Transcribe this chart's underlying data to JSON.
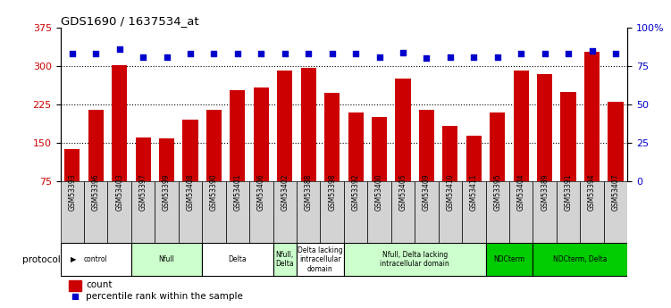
{
  "title": "GDS1690 / 1637534_at",
  "samples": [
    "GSM53393",
    "GSM53396",
    "GSM53403",
    "GSM53397",
    "GSM53399",
    "GSM53408",
    "GSM53390",
    "GSM53401",
    "GSM53406",
    "GSM53402",
    "GSM53388",
    "GSM53398",
    "GSM53392",
    "GSM53400",
    "GSM53405",
    "GSM53409",
    "GSM53410",
    "GSM53411",
    "GSM53395",
    "GSM53404",
    "GSM53389",
    "GSM53391",
    "GSM53394",
    "GSM53407"
  ],
  "counts": [
    137,
    215,
    302,
    160,
    158,
    195,
    215,
    253,
    258,
    292,
    297,
    248,
    210,
    200,
    275,
    215,
    183,
    163,
    210,
    292,
    285,
    250,
    328,
    230
  ],
  "pct_values": [
    83,
    83,
    86,
    81,
    81,
    83,
    83,
    83,
    83,
    83,
    83,
    83,
    83,
    81,
    84,
    80,
    81,
    81,
    81,
    83,
    83,
    83,
    85,
    83
  ],
  "bar_color": "#cc0000",
  "dot_color": "#0000cc",
  "ylim_left": [
    75,
    375
  ],
  "ylim_right": [
    0,
    100
  ],
  "yticks_left": [
    75,
    150,
    225,
    300,
    375
  ],
  "yticks_right": [
    0,
    25,
    50,
    75,
    100
  ],
  "ytick_labels_right": [
    "0",
    "25",
    "50",
    "75",
    "100%"
  ],
  "hlines": [
    150,
    225,
    300
  ],
  "groups": [
    {
      "label": "control",
      "start": 0,
      "end": 2,
      "color": "#ffffff"
    },
    {
      "label": "Nfull",
      "start": 3,
      "end": 5,
      "color": "#ccffcc"
    },
    {
      "label": "Delta",
      "start": 6,
      "end": 8,
      "color": "#ffffff"
    },
    {
      "label": "Nfull,\nDelta",
      "start": 9,
      "end": 9,
      "color": "#ccffcc"
    },
    {
      "label": "Delta lacking\nintracellular\ndomain",
      "start": 10,
      "end": 11,
      "color": "#ffffff"
    },
    {
      "label": "Nfull, Delta lacking\nintracellular domain",
      "start": 12,
      "end": 17,
      "color": "#ccffcc"
    },
    {
      "label": "NDCterm",
      "start": 18,
      "end": 19,
      "color": "#00cc00"
    },
    {
      "label": "NDCterm, Delta",
      "start": 20,
      "end": 23,
      "color": "#00cc00"
    }
  ],
  "protocol_label": "protocol",
  "legend_count_label": "count",
  "legend_pct_label": "percentile rank within the sample",
  "background_color": "#ffffff",
  "tick_label_color_left": "#cc0000",
  "tick_label_color_right": "#0000cc",
  "cell_bg": "#d3d3d3"
}
